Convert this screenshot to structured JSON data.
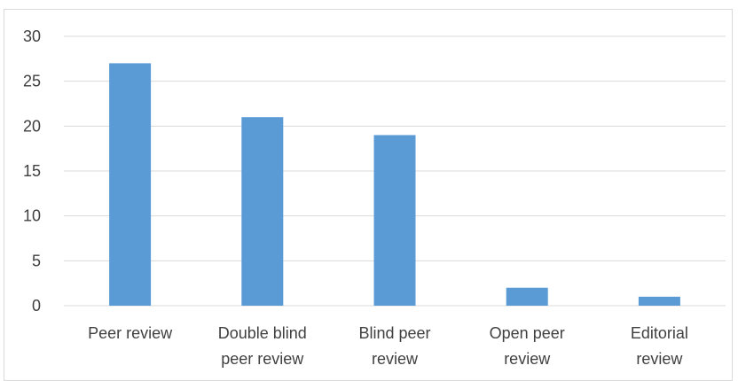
{
  "chart_data": {
    "type": "bar",
    "categories": [
      [
        "Peer review"
      ],
      [
        "Double blind",
        "peer review"
      ],
      [
        "Blind peer",
        "review"
      ],
      [
        "Open peer",
        "review"
      ],
      [
        "Editorial",
        "review"
      ]
    ],
    "values": [
      27,
      21,
      19,
      2,
      1
    ],
    "ylim": [
      0,
      30
    ],
    "yticks": [
      0,
      5,
      10,
      15,
      20,
      25,
      30
    ],
    "grid": true,
    "bar_color": "#5b9bd5",
    "grid_color": "#d9d9d9",
    "text_color": "#404040"
  }
}
